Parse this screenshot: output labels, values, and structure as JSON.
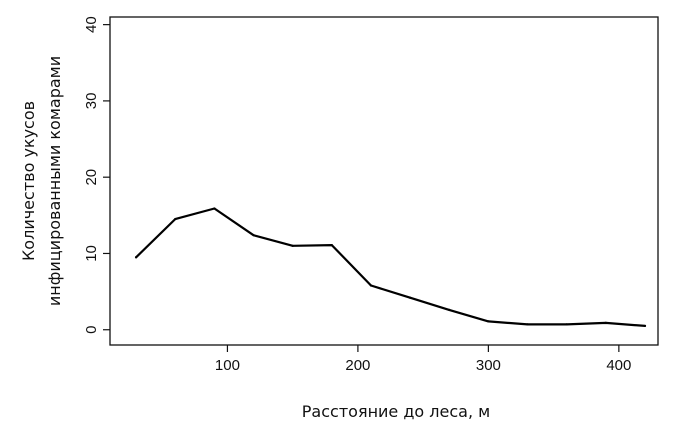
{
  "chart_data": {
    "type": "line",
    "title": "",
    "xlabel": "Расстояние до леса, м",
    "ylabel_lines": [
      "Количество укусов",
      "инфицированными комарами"
    ],
    "xlim": [
      10,
      430
    ],
    "ylim": [
      -2,
      41
    ],
    "x_ticks": [
      100,
      200,
      300,
      400
    ],
    "y_ticks": [
      0,
      10,
      20,
      30,
      40
    ],
    "grid": false,
    "line_color": "#000000",
    "series": [
      {
        "x": [
          30,
          60,
          90,
          120,
          150,
          180,
          210,
          240,
          270,
          300,
          330,
          360,
          390,
          420
        ],
        "y": [
          9.5,
          14.5,
          15.9,
          12.4,
          11.0,
          11.1,
          5.8,
          4.2,
          2.6,
          1.1,
          0.7,
          0.7,
          0.9,
          0.5
        ]
      }
    ]
  }
}
